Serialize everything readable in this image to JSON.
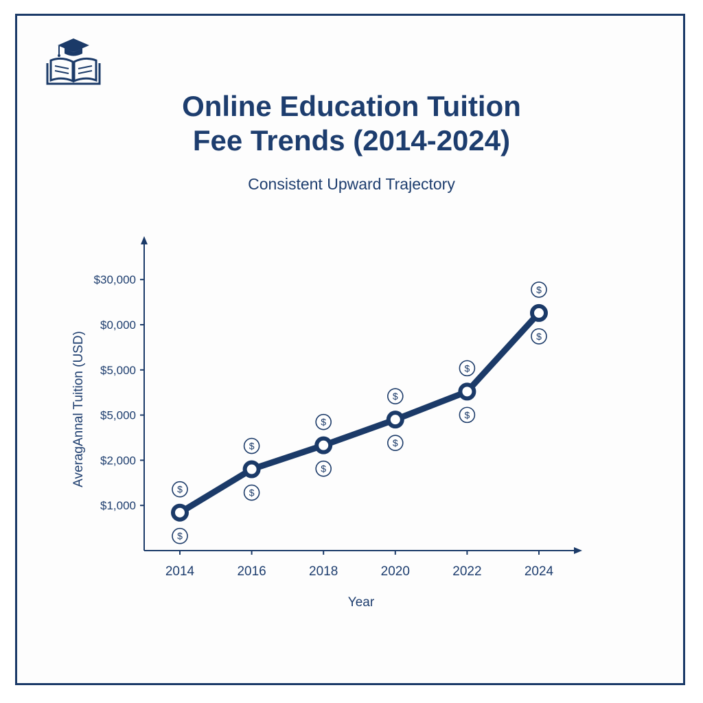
{
  "colors": {
    "primary": "#1b3a68",
    "background": "#ffffff"
  },
  "logo": {
    "icon": "graduation-cap-book-icon"
  },
  "chart_data": {
    "type": "line",
    "title_lines": [
      "Online Education Tuition",
      "Fee Trends (2014-2024)"
    ],
    "subtitle": "Consistent Upward Trajectory",
    "xlabel": "Year",
    "ylabel": "AveragAnnal Tuition (USD)",
    "x": [
      "2014",
      "2016",
      "2018",
      "2020",
      "2022",
      "2024"
    ],
    "y_tick_labels": [
      "$1,000",
      "$2,000",
      "$5,000",
      "$5,000",
      "$0,000",
      "$30,000"
    ],
    "y_tick_positions": [
      1,
      2,
      3,
      4,
      5,
      6
    ],
    "ylim": [
      0,
      6
    ],
    "series": [
      {
        "values": [
          0.84,
          1.8,
          2.33,
          2.9,
          3.52,
          5.26
        ]
      }
    ],
    "marker_symbol": "$",
    "grid": false
  }
}
